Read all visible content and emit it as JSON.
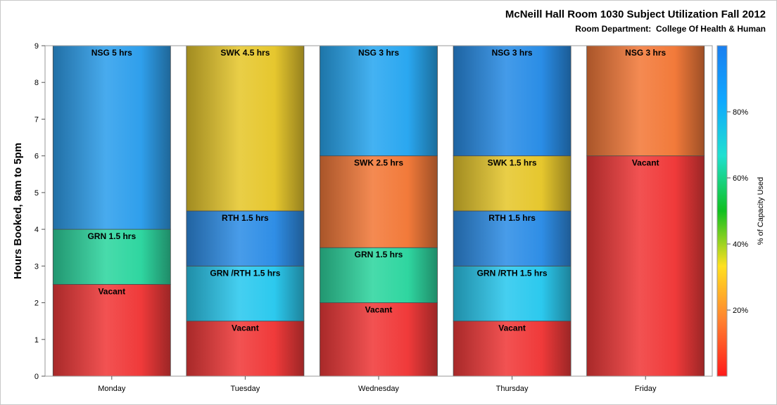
{
  "chart_data": {
    "type": "bar",
    "stacked": true,
    "title": "McNeill Hall Room 1030 Subject Utilization Fall 2012",
    "subtitle": "Room Department:  College Of Health & Human",
    "xlabel": "",
    "ylabel": "Hours Booked, 8am to 5pm",
    "ylim": [
      0,
      9
    ],
    "yticks": [
      "0",
      "1",
      "2",
      "3",
      "4",
      "5",
      "6",
      "7",
      "8",
      "9"
    ],
    "grid": false,
    "categories": [
      "Monday",
      "Tuesday",
      "Wednesday",
      "Thursday",
      "Friday"
    ],
    "bars": [
      {
        "category": "Monday",
        "segments": [
          {
            "label": "Vacant",
            "hours": 2.5,
            "color": "#f03a3a"
          },
          {
            "label": "GRN 1.5 hrs",
            "hours": 1.5,
            "color": "#2fd6a0"
          },
          {
            "label": "NSG 5 hrs",
            "hours": 5,
            "color": "#2f9fec"
          }
        ]
      },
      {
        "category": "Tuesday",
        "segments": [
          {
            "label": "Vacant",
            "hours": 1.5,
            "color": "#f03a3a"
          },
          {
            "label": "GRN /RTH 1.5 hrs",
            "hours": 1.5,
            "color": "#2cc9ee"
          },
          {
            "label": "RTH 1.5 hrs",
            "hours": 1.5,
            "color": "#2f8ee6"
          },
          {
            "label": "SWK 4.5 hrs",
            "hours": 4.5,
            "color": "#e6c72e"
          }
        ]
      },
      {
        "category": "Wednesday",
        "segments": [
          {
            "label": "Vacant",
            "hours": 2,
            "color": "#f03a3a"
          },
          {
            "label": "GRN 1.5 hrs",
            "hours": 1.5,
            "color": "#2fd6a0"
          },
          {
            "label": "SWK 2.5 hrs",
            "hours": 2.5,
            "color": "#f27a3a"
          },
          {
            "label": "NSG 3 hrs",
            "hours": 3,
            "color": "#2aa7f0"
          }
        ]
      },
      {
        "category": "Thursday",
        "segments": [
          {
            "label": "Vacant",
            "hours": 1.5,
            "color": "#f03a3a"
          },
          {
            "label": "GRN /RTH 1.5 hrs",
            "hours": 1.5,
            "color": "#2cc9ee"
          },
          {
            "label": "RTH 1.5 hrs",
            "hours": 1.5,
            "color": "#2f8ee6"
          },
          {
            "label": "SWK 1.5 hrs",
            "hours": 1.5,
            "color": "#e6c72e"
          },
          {
            "label": "NSG 3 hrs",
            "hours": 3,
            "color": "#2a8de6"
          }
        ]
      },
      {
        "category": "Friday",
        "segments": [
          {
            "label": "Vacant",
            "hours": 6,
            "color": "#f03a3a"
          },
          {
            "label": "NSG 3 hrs",
            "hours": 3,
            "color": "#f27a3a"
          }
        ]
      }
    ],
    "colorbar": {
      "label": "% of Capacity Used",
      "ticks": [
        "20%",
        "40%",
        "60%",
        "80%"
      ],
      "tick_values": [
        20,
        40,
        60,
        80
      ],
      "range": [
        0,
        100
      ],
      "stops": [
        "#ff1a1a",
        "#ff8030",
        "#ffe020",
        "#10c020",
        "#20e0d0",
        "#10a8ff",
        "#1a7ff0"
      ]
    }
  }
}
